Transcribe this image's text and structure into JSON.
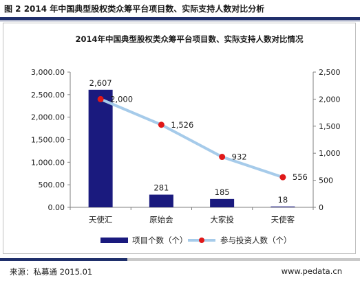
{
  "figure_title": "图 2 2014 年中国典型股权类众筹平台项目数、实际支持人数对比分析",
  "source": "来源：私募通 2015.01",
  "website": "www.pedata.cn",
  "colors": {
    "bar": "#1a1a7e",
    "line": "#a6cbea",
    "marker": "#e01818",
    "rule": "#1f2f6b"
  },
  "chart_data": {
    "type": "bar",
    "title": "2014年中国典型股权类众筹平台项目数、实际支持人数对比情况",
    "categories": [
      "天使汇",
      "原始会",
      "大家投",
      "天使客"
    ],
    "y_left": {
      "ticks": [
        "0.00",
        "500.00",
        "1,000.00",
        "1,500.00",
        "2,000.00",
        "2,500.00",
        "3,000.00"
      ],
      "range": [
        0,
        3000
      ]
    },
    "y_right": {
      "ticks": [
        "0",
        "500",
        "1,000",
        "1,500",
        "2,000",
        "2,500"
      ],
      "range": [
        0,
        2500
      ]
    },
    "series": [
      {
        "name": "项目个数（个）",
        "type": "bar",
        "axis": "left",
        "values": [
          2607,
          281,
          185,
          18
        ],
        "labels": [
          "2,607",
          "281",
          "185",
          "18"
        ]
      },
      {
        "name": "参与投资人数（个）",
        "type": "line",
        "axis": "right",
        "values": [
          2000,
          1526,
          932,
          556
        ],
        "labels": [
          "2,000",
          "1,526",
          "932",
          "556"
        ]
      }
    ],
    "grid": false,
    "legend": "bottom"
  }
}
